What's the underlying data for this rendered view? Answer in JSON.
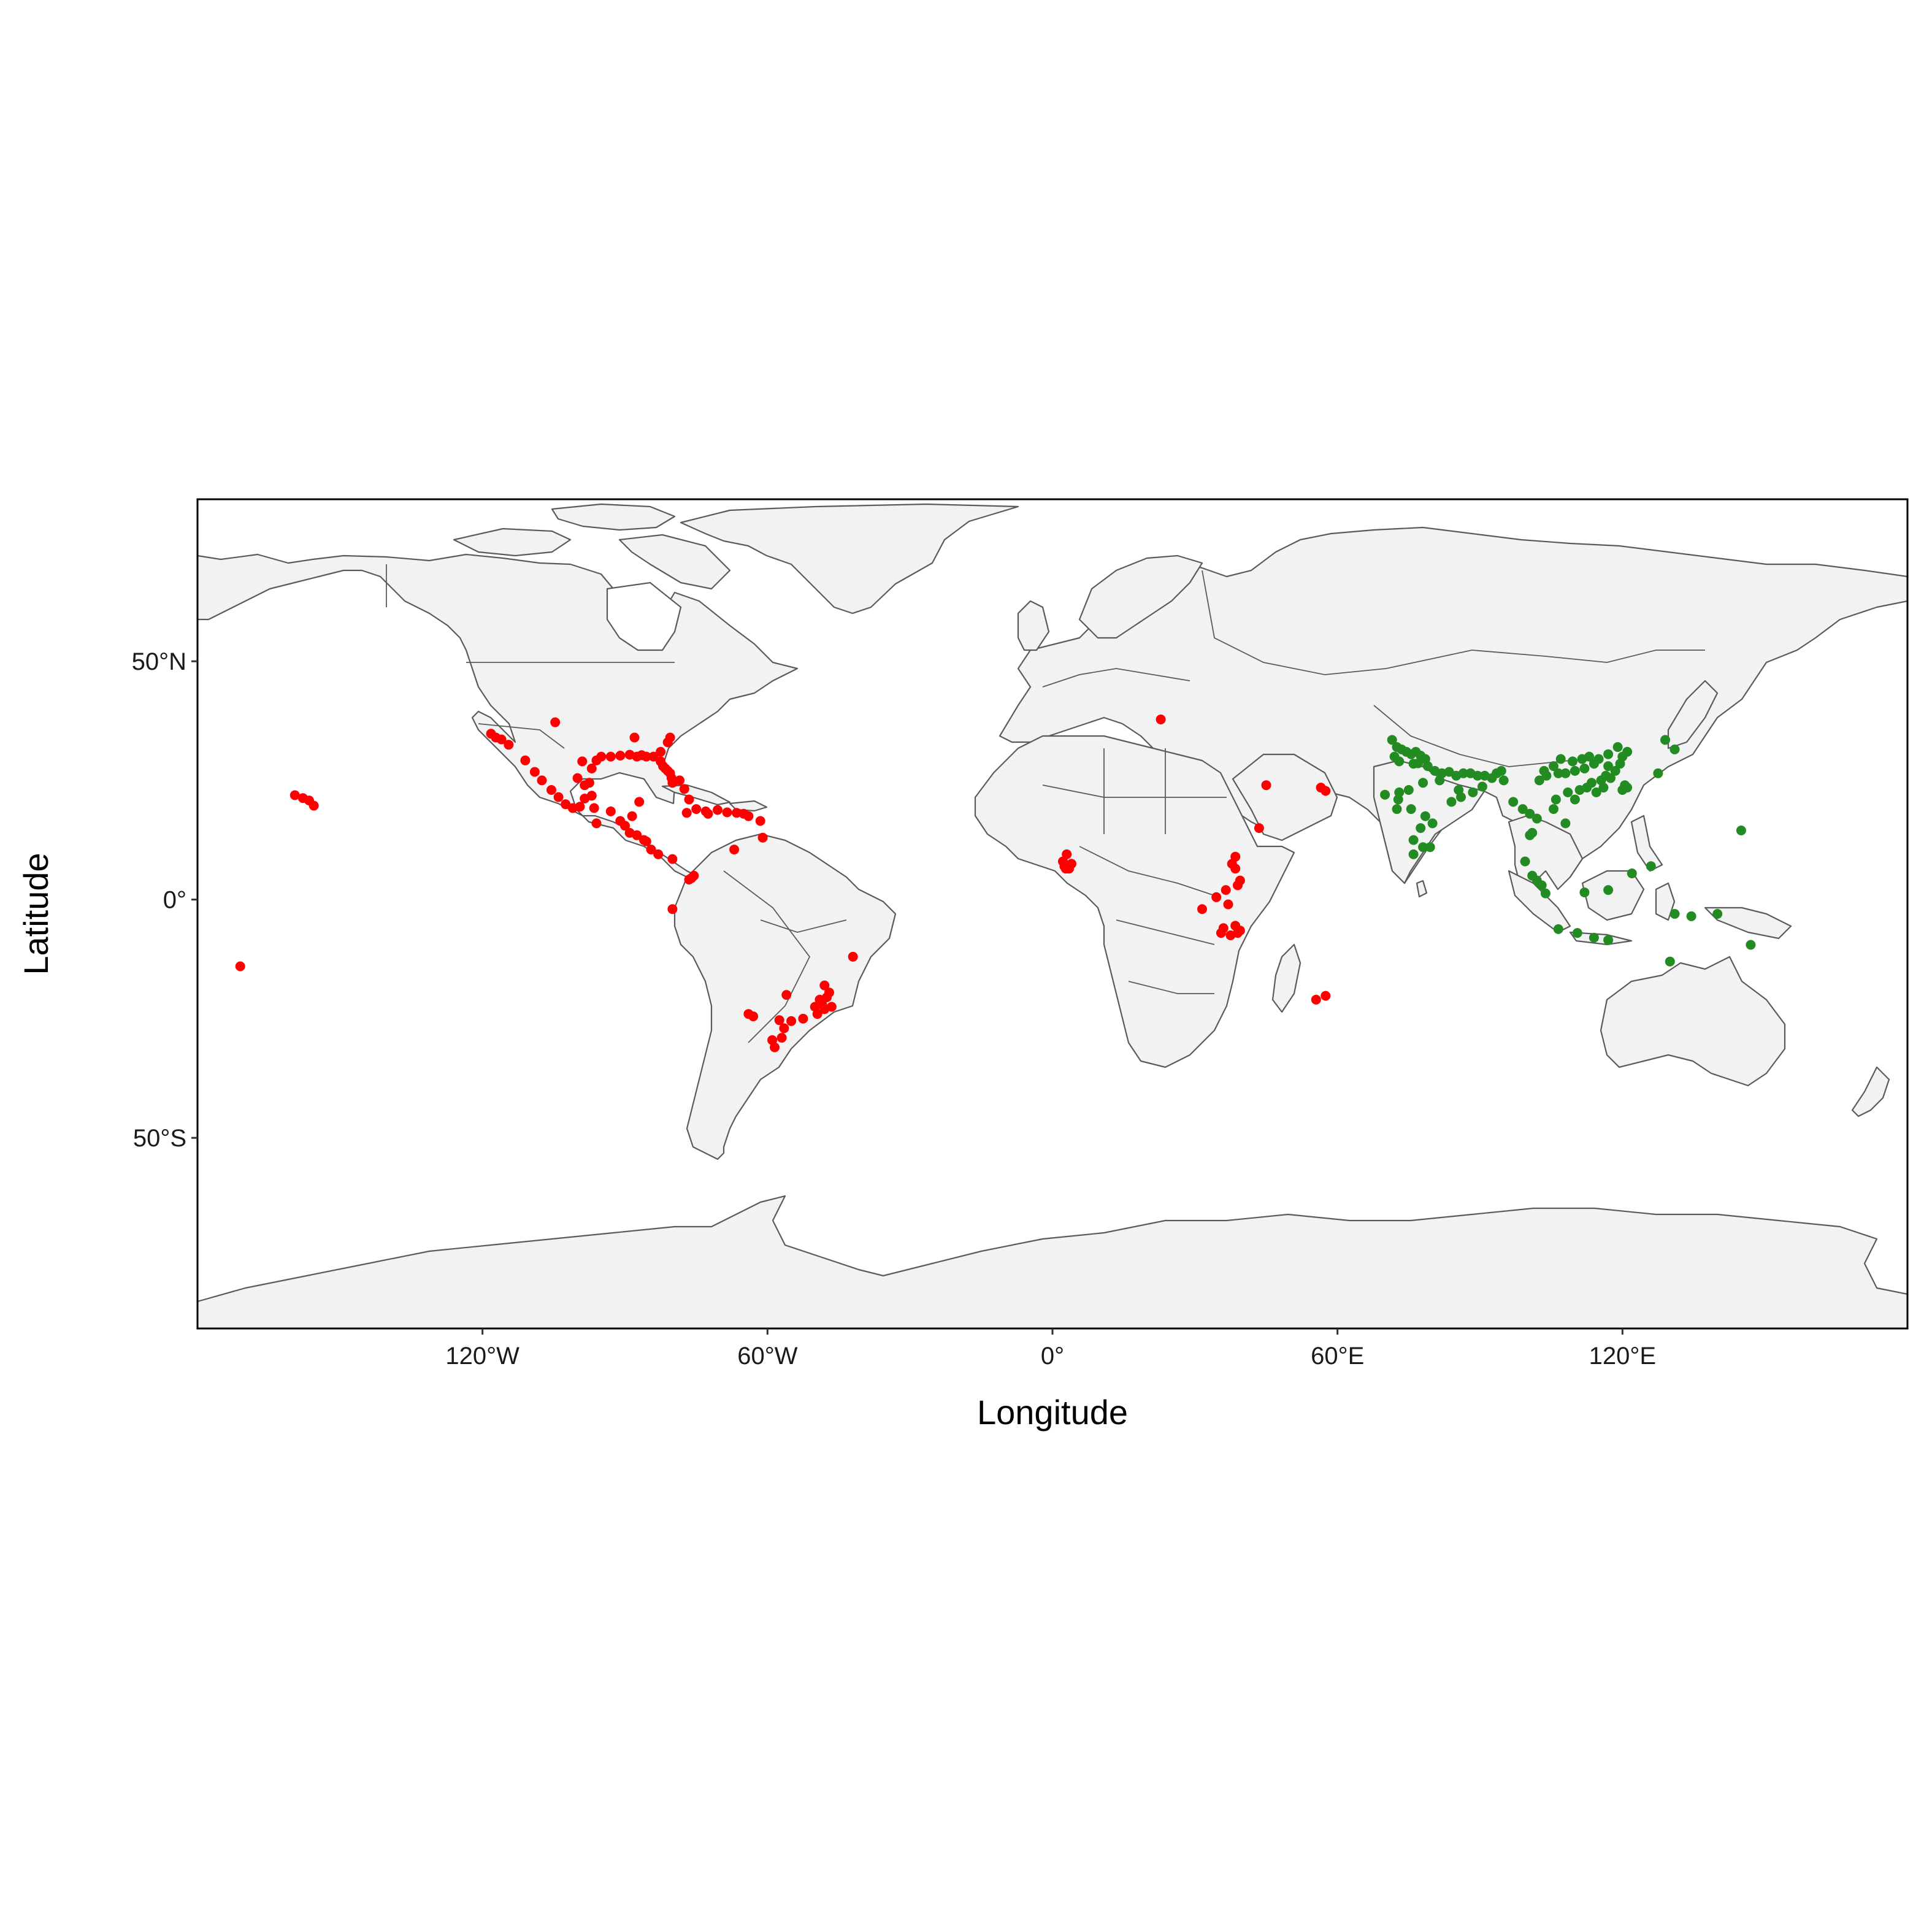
{
  "chart_data": {
    "type": "scatter",
    "xlabel": "Longitude",
    "ylabel": "Latitude",
    "xlim": [
      -180,
      180
    ],
    "ylim": [
      -90,
      84
    ],
    "x_ticks": [
      {
        "value": -120,
        "label": "120°W"
      },
      {
        "value": -60,
        "label": "60°W"
      },
      {
        "value": 0,
        "label": "0°"
      },
      {
        "value": 60,
        "label": "60°E"
      },
      {
        "value": 120,
        "label": "120°E"
      }
    ],
    "y_ticks": [
      {
        "value": 50,
        "label": "50°N"
      },
      {
        "value": 0,
        "label": "0°"
      },
      {
        "value": -50,
        "label": "50°S"
      }
    ],
    "background_map": "world countries",
    "land_color": "#f2f2f2",
    "border_color": "#5a5a5a",
    "grid": false,
    "series": [
      {
        "color": "#ff0000",
        "points": [
          [
            -118.2,
            34.8
          ],
          [
            -117.2,
            34.0
          ],
          [
            -116.0,
            33.6
          ],
          [
            -114.5,
            32.5
          ],
          [
            -104.7,
            37.2
          ],
          [
            -111.0,
            29.2
          ],
          [
            -109.0,
            26.8
          ],
          [
            -107.5,
            25.0
          ],
          [
            -105.5,
            23.0
          ],
          [
            -104.0,
            21.5
          ],
          [
            -102.5,
            20.0
          ],
          [
            -101.0,
            19.2
          ],
          [
            -99.5,
            19.5
          ],
          [
            -98.5,
            21.2
          ],
          [
            -97.0,
            21.8
          ],
          [
            -96.5,
            19.2
          ],
          [
            -98.5,
            24.0
          ],
          [
            -100.0,
            25.5
          ],
          [
            -99.0,
            29.0
          ],
          [
            -97.0,
            27.5
          ],
          [
            -97.5,
            24.5
          ],
          [
            -96.0,
            29.2
          ],
          [
            -95.0,
            30.0
          ],
          [
            -93.0,
            30.0
          ],
          [
            -91.0,
            30.2
          ],
          [
            -89.0,
            30.4
          ],
          [
            -87.5,
            30.0
          ],
          [
            -88.0,
            34.0
          ],
          [
            -86.5,
            30.3
          ],
          [
            -85.5,
            30.0
          ],
          [
            -84.0,
            30.0
          ],
          [
            -82.5,
            31.0
          ],
          [
            -81.0,
            33.0
          ],
          [
            -80.5,
            34.0
          ],
          [
            -82.0,
            28.0
          ],
          [
            -81.5,
            27.5
          ],
          [
            -80.5,
            26.5
          ],
          [
            -80.2,
            25.5
          ],
          [
            -81.0,
            27.0
          ],
          [
            -82.5,
            29.0
          ],
          [
            -80.0,
            24.5
          ],
          [
            -78.5,
            25.0
          ],
          [
            -77.5,
            23.2
          ],
          [
            -76.5,
            21.0
          ],
          [
            -75.0,
            19.0
          ],
          [
            -73.0,
            18.5
          ],
          [
            -70.5,
            18.8
          ],
          [
            -68.5,
            18.3
          ],
          [
            -66.5,
            18.2
          ],
          [
            -65.0,
            18.0
          ],
          [
            -64.0,
            17.5
          ],
          [
            -61.5,
            16.5
          ],
          [
            -61.0,
            13.0
          ],
          [
            -67.0,
            10.5
          ],
          [
            -72.5,
            18.0
          ],
          [
            -77.0,
            18.2
          ],
          [
            -87.0,
            20.5
          ],
          [
            -88.5,
            17.5
          ],
          [
            -90.0,
            15.5
          ],
          [
            -89.0,
            14.0
          ],
          [
            -87.5,
            13.5
          ],
          [
            -86.0,
            12.5
          ],
          [
            -84.5,
            10.5
          ],
          [
            -83.0,
            9.5
          ],
          [
            -80.0,
            8.5
          ],
          [
            -85.5,
            12.2
          ],
          [
            -91.0,
            16.5
          ],
          [
            -93.0,
            18.5
          ],
          [
            -96.0,
            16.0
          ],
          [
            -76.0,
            4.5
          ],
          [
            -75.5,
            5.0
          ],
          [
            -76.5,
            4.2
          ],
          [
            -80.0,
            -2.0
          ],
          [
            -42.0,
            -12.0
          ],
          [
            -48.0,
            -18.0
          ],
          [
            -47.5,
            -20.5
          ],
          [
            -48.5,
            -22.0
          ],
          [
            -46.5,
            -22.5
          ],
          [
            -49.0,
            -21.0
          ],
          [
            -47.0,
            -19.5
          ],
          [
            -48.0,
            -23.0
          ],
          [
            -50.0,
            -22.5
          ],
          [
            -49.5,
            -24.0
          ],
          [
            -52.5,
            -25.0
          ],
          [
            -55.0,
            -25.5
          ],
          [
            -56.5,
            -27.0
          ],
          [
            -57.5,
            -25.3
          ],
          [
            -59.0,
            -29.5
          ],
          [
            -58.5,
            -31.0
          ],
          [
            -63.0,
            -24.5
          ],
          [
            -64.0,
            -24.0
          ],
          [
            -56.0,
            -20.0
          ],
          [
            -57.0,
            -29.0
          ],
          [
            -157.8,
            21.3
          ],
          [
            -156.5,
            20.8
          ],
          [
            -155.5,
            19.7
          ],
          [
            -159.5,
            21.9
          ],
          [
            -171.0,
            -14.0
          ],
          [
            2.5,
            7.0
          ],
          [
            3.5,
            6.5
          ],
          [
            2.2,
            8.0
          ],
          [
            3.0,
            9.5
          ],
          [
            4.0,
            7.5
          ],
          [
            2.8,
            6.5
          ],
          [
            22.8,
            37.8
          ],
          [
            45.0,
            24.0
          ],
          [
            43.5,
            15.0
          ],
          [
            56.5,
            23.5
          ],
          [
            57.5,
            22.8
          ],
          [
            39.5,
            4.0
          ],
          [
            38.5,
            6.5
          ],
          [
            37.8,
            7.5
          ],
          [
            38.5,
            9.0
          ],
          [
            36.5,
            2.0
          ],
          [
            39.0,
            3.0
          ],
          [
            34.5,
            0.5
          ],
          [
            37.0,
            -1.0
          ],
          [
            31.5,
            -2.0
          ],
          [
            36.0,
            -6.0
          ],
          [
            38.5,
            -5.5
          ],
          [
            39.0,
            -7.0
          ],
          [
            37.5,
            -7.5
          ],
          [
            35.5,
            -7.0
          ],
          [
            39.5,
            -6.5
          ],
          [
            55.5,
            -21.0
          ],
          [
            57.5,
            -20.2
          ]
        ]
      },
      {
        "color": "#228b22",
        "points": [
          [
            71.5,
            33.5
          ],
          [
            72.5,
            32.0
          ],
          [
            73.5,
            31.5
          ],
          [
            74.5,
            31.0
          ],
          [
            72.0,
            30.0
          ],
          [
            73.0,
            29.0
          ],
          [
            75.5,
            30.5
          ],
          [
            76.5,
            31.0
          ],
          [
            77.5,
            30.2
          ],
          [
            78.5,
            29.5
          ],
          [
            76.0,
            28.5
          ],
          [
            77.0,
            28.6
          ],
          [
            79.0,
            28.0
          ],
          [
            80.5,
            27.0
          ],
          [
            82.0,
            26.5
          ],
          [
            83.5,
            26.8
          ],
          [
            85.0,
            26.0
          ],
          [
            86.5,
            26.5
          ],
          [
            88.0,
            26.5
          ],
          [
            89.5,
            26.0
          ],
          [
            91.0,
            26.0
          ],
          [
            92.5,
            25.5
          ],
          [
            93.5,
            26.5
          ],
          [
            94.5,
            27.0
          ],
          [
            95.0,
            25.0
          ],
          [
            90.5,
            23.7
          ],
          [
            88.5,
            22.5
          ],
          [
            85.5,
            23.0
          ],
          [
            81.5,
            25.0
          ],
          [
            78.0,
            24.5
          ],
          [
            75.0,
            23.0
          ],
          [
            73.0,
            22.5
          ],
          [
            70.0,
            22.0
          ],
          [
            72.5,
            19.0
          ],
          [
            75.5,
            19.0
          ],
          [
            78.5,
            17.5
          ],
          [
            80.0,
            16.0
          ],
          [
            77.5,
            15.0
          ],
          [
            76.0,
            12.5
          ],
          [
            78.0,
            11.0
          ],
          [
            76.0,
            9.5
          ],
          [
            79.5,
            11.0
          ],
          [
            72.8,
            21.0
          ],
          [
            84.0,
            20.5
          ],
          [
            86.0,
            21.5
          ],
          [
            97.0,
            20.5
          ],
          [
            99.0,
            19.0
          ],
          [
            100.5,
            18.0
          ],
          [
            102.0,
            17.0
          ],
          [
            101.0,
            14.0
          ],
          [
            100.5,
            13.5
          ],
          [
            99.5,
            8.0
          ],
          [
            101.0,
            5.0
          ],
          [
            102.0,
            4.0
          ],
          [
            103.0,
            3.0
          ],
          [
            103.8,
            1.3
          ],
          [
            106.0,
            21.0
          ],
          [
            105.5,
            19.0
          ],
          [
            108.0,
            16.0
          ],
          [
            108.5,
            22.5
          ],
          [
            110.0,
            21.0
          ],
          [
            111.0,
            23.0
          ],
          [
            112.5,
            23.5
          ],
          [
            113.5,
            24.5
          ],
          [
            114.5,
            22.5
          ],
          [
            115.5,
            25.0
          ],
          [
            116.5,
            26.0
          ],
          [
            117.5,
            25.5
          ],
          [
            118.5,
            27.0
          ],
          [
            119.5,
            28.5
          ],
          [
            120.0,
            30.0
          ],
          [
            121.0,
            31.0
          ],
          [
            117.0,
            28.0
          ],
          [
            114.0,
            28.5
          ],
          [
            112.0,
            27.5
          ],
          [
            110.0,
            27.0
          ],
          [
            108.0,
            26.5
          ],
          [
            106.5,
            26.5
          ],
          [
            104.0,
            26.0
          ],
          [
            102.5,
            25.0
          ],
          [
            103.5,
            27.0
          ],
          [
            105.5,
            28.0
          ],
          [
            107.0,
            29.5
          ],
          [
            109.5,
            29.0
          ],
          [
            111.5,
            29.5
          ],
          [
            113.0,
            30.0
          ],
          [
            115.0,
            29.5
          ],
          [
            117.0,
            30.5
          ],
          [
            119.0,
            32.0
          ],
          [
            120.5,
            24.0
          ],
          [
            121.0,
            23.5
          ],
          [
            120.0,
            23.0
          ],
          [
            116.0,
            23.5
          ],
          [
            127.5,
            26.5
          ],
          [
            131.0,
            31.5
          ],
          [
            129.0,
            33.5
          ],
          [
            145.0,
            14.5
          ],
          [
            126.0,
            7.0
          ],
          [
            122.0,
            5.5
          ],
          [
            117.0,
            2.0
          ],
          [
            112.0,
            1.5
          ],
          [
            110.5,
            -7.0
          ],
          [
            114.0,
            -8.0
          ],
          [
            106.5,
            -6.2
          ],
          [
            117.0,
            -8.5
          ],
          [
            130.0,
            -13.0
          ],
          [
            131.0,
            -3.0
          ],
          [
            134.5,
            -3.5
          ],
          [
            147.0,
            -9.5
          ],
          [
            140.0,
            -3.0
          ]
        ]
      }
    ]
  }
}
